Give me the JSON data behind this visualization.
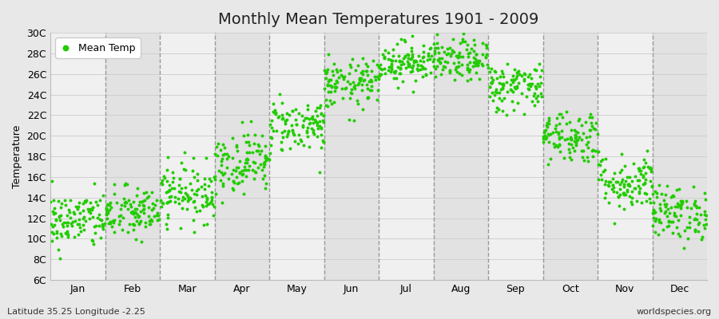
{
  "title": "Monthly Mean Temperatures 1901 - 2009",
  "ylabel": "Temperature",
  "xlabel_bottom_left": "Latitude 35.25 Longitude -2.25",
  "xlabel_bottom_right": "worldspecies.org",
  "legend_label": "Mean Temp",
  "marker_color": "#22CC00",
  "bg_color": "#E8E8E8",
  "plot_bg_light": "#F0F0F0",
  "plot_bg_dark": "#E2E2E2",
  "yticks": [
    6,
    8,
    10,
    12,
    14,
    16,
    18,
    20,
    22,
    24,
    26,
    28,
    30
  ],
  "ytick_labels": [
    "6C",
    "8C",
    "10C",
    "12C",
    "14C",
    "16C",
    "18C",
    "20C",
    "22C",
    "24C",
    "26C",
    "28C",
    "30C"
  ],
  "ylim": [
    6,
    30
  ],
  "months": [
    "Jan",
    "Feb",
    "Mar",
    "Apr",
    "May",
    "Jun",
    "Jul",
    "Aug",
    "Sep",
    "Oct",
    "Nov",
    "Dec"
  ],
  "month_means": [
    11.8,
    12.5,
    14.5,
    17.5,
    21.0,
    25.0,
    27.2,
    27.3,
    24.8,
    20.0,
    15.5,
    12.5
  ],
  "month_stds": [
    1.4,
    1.3,
    1.4,
    1.5,
    1.3,
    1.2,
    1.0,
    1.0,
    1.2,
    1.3,
    1.4,
    1.3
  ],
  "n_years": 109,
  "seed": 42,
  "marker_size": 8,
  "title_fontsize": 14,
  "axis_fontsize": 9,
  "tick_fontsize": 9,
  "legend_fontsize": 9,
  "vline_color": "#999999",
  "vline_linestyle": "--",
  "vline_linewidth": 1.0,
  "hgrid_color": "#CCCCCC",
  "hgrid_linewidth": 0.6
}
